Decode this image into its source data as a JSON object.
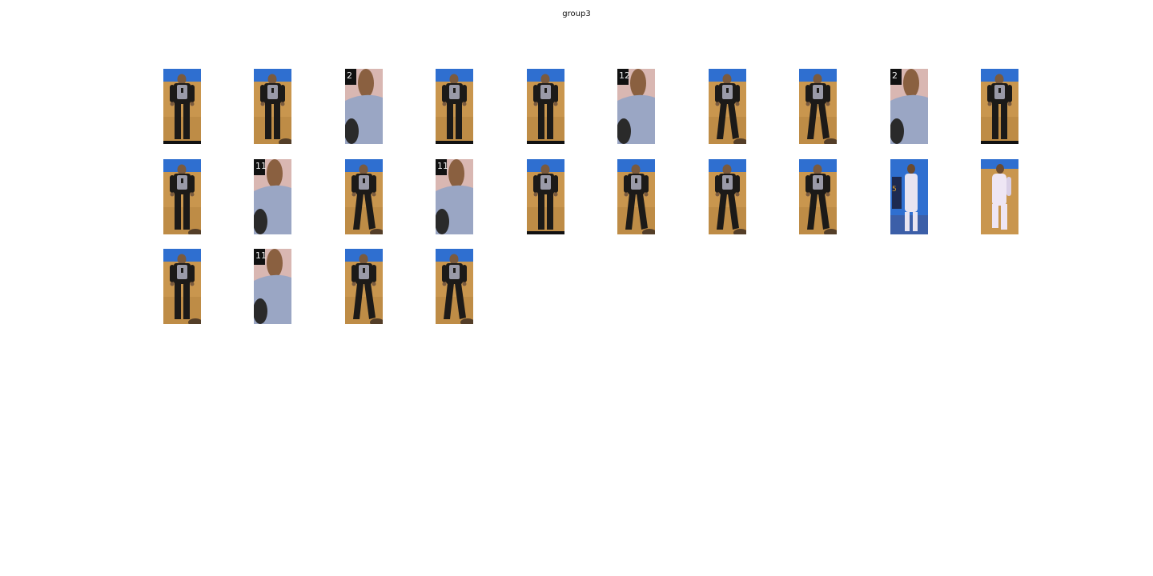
{
  "title": "group3",
  "crops": [
    {
      "type": "referee",
      "variant": "a"
    },
    {
      "type": "referee",
      "variant": "b"
    },
    {
      "type": "closeup",
      "number": "2"
    },
    {
      "type": "referee",
      "variant": "a"
    },
    {
      "type": "referee",
      "variant": "a"
    },
    {
      "type": "closeup",
      "number": "12"
    },
    {
      "type": "referee",
      "variant": "walk"
    },
    {
      "type": "referee",
      "variant": "walk"
    },
    {
      "type": "closeup",
      "number": "2"
    },
    {
      "type": "referee",
      "variant": "a"
    },
    {
      "type": "referee",
      "variant": "b"
    },
    {
      "type": "closeup",
      "number": "11"
    },
    {
      "type": "referee",
      "variant": "walk"
    },
    {
      "type": "closeup",
      "number": "11"
    },
    {
      "type": "referee",
      "variant": "a"
    },
    {
      "type": "referee",
      "variant": "walk"
    },
    {
      "type": "referee",
      "variant": "walk"
    },
    {
      "type": "referee",
      "variant": "walk"
    },
    {
      "type": "players",
      "number": "5"
    },
    {
      "type": "player-white"
    },
    {
      "type": "referee",
      "variant": "b"
    },
    {
      "type": "closeup",
      "number": "11"
    },
    {
      "type": "referee",
      "variant": "walk"
    },
    {
      "type": "referee",
      "variant": "walk"
    }
  ],
  "colors": {
    "court": "#c9964e",
    "court_dark": "#a97a3a",
    "wall_blue": "#2f6fd0",
    "referee_black": "#1c1a18",
    "referee_grey": "#9a9aa8",
    "skin": "#7a5a3e",
    "closeup_shirt": "#9aa6c4",
    "closeup_bg": "#d9b7b2"
  }
}
